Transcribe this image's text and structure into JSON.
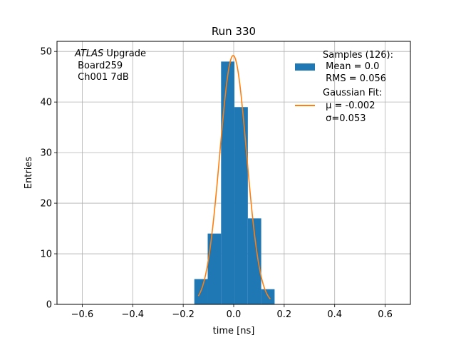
{
  "chart_data": {
    "type": "bar",
    "title": "Run 330",
    "xlabel": "time [ns]",
    "ylabel": "Entries",
    "xlim": [
      -0.7,
      0.7
    ],
    "ylim": [
      0,
      52
    ],
    "grid": true,
    "xticks": [
      -0.6,
      -0.4,
      -0.2,
      0.0,
      0.2,
      0.4,
      0.6
    ],
    "xtick_labels": [
      "−0.6",
      "−0.4",
      "−0.2",
      "0.0",
      "0.2",
      "0.4",
      "0.6"
    ],
    "yticks": [
      0,
      10,
      20,
      30,
      40,
      50
    ],
    "ytick_labels": [
      "0",
      "10",
      "20",
      "30",
      "40",
      "50"
    ],
    "annotation": {
      "line1_italic": "ATLAS",
      "line1_rest": " Upgrade",
      "line2": " Board259",
      "line3": " Ch001 7dB"
    },
    "histogram": {
      "color": "#1f77b4",
      "bins": [
        {
          "x0": -0.156,
          "x1": -0.103,
          "count": 5
        },
        {
          "x0": -0.103,
          "x1": -0.05,
          "count": 14
        },
        {
          "x0": -0.05,
          "x1": 0.003,
          "count": 48
        },
        {
          "x0": 0.003,
          "x1": 0.056,
          "count": 39
        },
        {
          "x0": 0.056,
          "x1": 0.109,
          "count": 17
        },
        {
          "x0": 0.109,
          "x1": 0.162,
          "count": 3
        }
      ]
    },
    "fit": {
      "color": "#ff7f0e",
      "mu": -0.002,
      "sigma": 0.053,
      "amplitude": 49.2,
      "x_range": [
        -0.14,
        0.145
      ]
    },
    "legend": {
      "placement": "top-right",
      "entries": [
        {
          "kind": "patch",
          "lines": [
            "Samples (126):",
            " Mean = 0.0",
            " RMS = 0.056"
          ]
        },
        {
          "kind": "line",
          "lines": [
            "Gaussian Fit:",
            " μ = -0.002",
            " σ=0.053"
          ]
        }
      ]
    }
  }
}
